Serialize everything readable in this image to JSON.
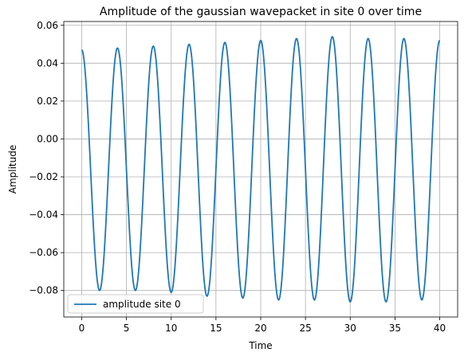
{
  "chart_data": {
    "type": "line",
    "title": "Amplitude of the gaussian wavepacket in site 0 over time",
    "xlabel": "Time",
    "ylabel": "Amplitude",
    "xlim": [
      -2,
      42
    ],
    "ylim": [
      -0.094,
      0.062
    ],
    "xticks": [
      0,
      5,
      10,
      15,
      20,
      25,
      30,
      35,
      40
    ],
    "xtick_labels": [
      "0",
      "5",
      "10",
      "15",
      "20",
      "25",
      "30",
      "35",
      "40"
    ],
    "yticks": [
      -0.08,
      -0.06,
      -0.04,
      -0.02,
      0.0,
      0.02,
      0.04,
      0.06
    ],
    "ytick_labels": [
      "−0.08",
      "−0.06",
      "−0.04",
      "−0.02",
      "0.00",
      "0.02",
      "0.04",
      "0.06"
    ],
    "grid": true,
    "legend": {
      "position": "lower-left"
    },
    "series": [
      {
        "name": "amplitude site 0",
        "color": "#1f77b4",
        "x": [
          0,
          2,
          4,
          6,
          8,
          10,
          12,
          14,
          16,
          18,
          20,
          22,
          24,
          26,
          28,
          30,
          32,
          34,
          36,
          38,
          40
        ],
        "y": [
          0.047,
          -0.08,
          0.048,
          -0.08,
          0.049,
          -0.081,
          0.05,
          -0.083,
          0.051,
          -0.084,
          0.052,
          -0.085,
          0.053,
          -0.085,
          0.054,
          -0.086,
          0.053,
          -0.086,
          0.053,
          -0.085,
          0.052
        ]
      }
    ]
  }
}
